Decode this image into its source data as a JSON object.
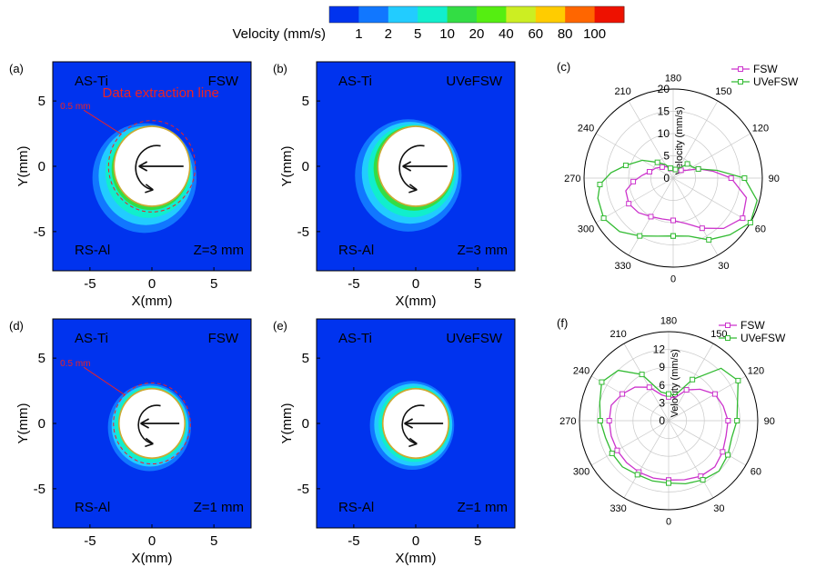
{
  "colorbar": {
    "label": "Velocity (mm/s)",
    "ticks": [
      "1",
      "2",
      "5",
      "10",
      "20",
      "40",
      "60",
      "80",
      "100"
    ],
    "colors": [
      "#0033ee",
      "#1177ff",
      "#22ccff",
      "#11eecc",
      "#33dd44",
      "#55ee11",
      "#ccee22",
      "#ffcc00",
      "#ff6600",
      "#ee1100"
    ]
  },
  "contour_panels": [
    {
      "label": "(a)",
      "top_right": "FSW",
      "top_left": "AS-Ti",
      "bottom_left": "RS-Al",
      "bottom_right": "Z=3 mm",
      "annotation": "Data extraction line",
      "dim_label": "0.5 mm",
      "xlabel": "X(mm)",
      "ylabel": "Y(mm)"
    },
    {
      "label": "(b)",
      "top_right": "UVeFSW",
      "top_left": "AS-Ti",
      "bottom_left": "RS-Al",
      "bottom_right": "Z=3 mm",
      "annotation": "",
      "dim_label": "",
      "xlabel": "X(mm)",
      "ylabel": "Y(mm)"
    },
    {
      "label": "(d)",
      "top_right": "FSW",
      "top_left": "AS-Ti",
      "bottom_left": "RS-Al",
      "bottom_right": "Z=1 mm",
      "annotation": "",
      "dim_label": "0.5 mm",
      "xlabel": "X(mm)",
      "ylabel": "Y(mm)"
    },
    {
      "label": "(e)",
      "top_right": "UVeFSW",
      "top_left": "AS-Ti",
      "bottom_left": "RS-Al",
      "bottom_right": "Z=1 mm",
      "annotation": "",
      "dim_label": "",
      "xlabel": "X(mm)",
      "ylabel": "Y(mm)"
    }
  ],
  "polar_panels": [
    {
      "label": "(c)",
      "rlabel": "Velocity (mm/s)",
      "r_ticks": [
        "0",
        "5",
        "10",
        "15",
        "20"
      ],
      "rmax": 20
    },
    {
      "label": "(f)",
      "rlabel": "Velocity (mm/s)",
      "r_ticks": [
        "0",
        "3",
        "6",
        "9",
        "12"
      ],
      "rmax": 15
    }
  ],
  "chart_data": [
    {
      "type": "heatmap",
      "panel": "(a)",
      "xlim": [
        -8,
        8
      ],
      "ylim": [
        -8,
        8
      ],
      "x_ticks": [
        -5,
        0,
        5
      ],
      "y_ticks": [
        -5,
        0,
        5
      ],
      "tool_radius_mm": 3,
      "series_name": "FSW",
      "layer_z": "Z=3 mm",
      "zones": [
        {
          "velocity": 2,
          "cx": -0.6,
          "cy": -0.9,
          "r": 4.2
        },
        {
          "velocity": 5,
          "cx": -0.5,
          "cy": -0.7,
          "r": 3.8
        },
        {
          "velocity": 10,
          "cx": -0.3,
          "cy": -0.5,
          "r": 3.45
        },
        {
          "velocity": 20,
          "cx": -0.1,
          "cy": -0.2,
          "r": 3.15
        },
        {
          "velocity": 40,
          "cx": 0,
          "cy": -0.05,
          "r": 3.02
        }
      ]
    },
    {
      "type": "heatmap",
      "panel": "(b)",
      "xlim": [
        -8,
        8
      ],
      "ylim": [
        -8,
        8
      ],
      "x_ticks": [
        -5,
        0,
        5
      ],
      "y_ticks": [
        -5,
        0,
        5
      ],
      "tool_radius_mm": 3,
      "series_name": "UVeFSW",
      "layer_z": "Z=3 mm",
      "zones": [
        {
          "velocity": 2,
          "cx": -0.6,
          "cy": -0.7,
          "r": 4.3
        },
        {
          "velocity": 5,
          "cx": -0.45,
          "cy": -0.5,
          "r": 3.9
        },
        {
          "velocity": 10,
          "cx": -0.3,
          "cy": -0.35,
          "r": 3.55
        },
        {
          "velocity": 20,
          "cx": -0.15,
          "cy": -0.15,
          "r": 3.25
        },
        {
          "velocity": 40,
          "cx": 0,
          "cy": 0,
          "r": 3.05
        }
      ]
    },
    {
      "type": "heatmap",
      "panel": "(d)",
      "xlim": [
        -8,
        8
      ],
      "ylim": [
        -8,
        8
      ],
      "x_ticks": [
        -5,
        0,
        5
      ],
      "y_ticks": [
        -5,
        0,
        5
      ],
      "tool_radius_mm": 2.6,
      "series_name": "FSW",
      "layer_z": "Z=1 mm",
      "zones": [
        {
          "velocity": 2,
          "cx": -0.2,
          "cy": -0.3,
          "r": 3.35
        },
        {
          "velocity": 5,
          "cx": -0.15,
          "cy": -0.2,
          "r": 3.1
        },
        {
          "velocity": 10,
          "cx": -0.1,
          "cy": -0.1,
          "r": 2.9
        },
        {
          "velocity": 20,
          "cx": 0,
          "cy": 0,
          "r": 2.7
        }
      ]
    },
    {
      "type": "heatmap",
      "panel": "(e)",
      "xlim": [
        -8,
        8
      ],
      "ylim": [
        -8,
        8
      ],
      "x_ticks": [
        -5,
        0,
        5
      ],
      "y_ticks": [
        -5,
        0,
        5
      ],
      "tool_radius_mm": 2.6,
      "series_name": "UVeFSW",
      "layer_z": "Z=1 mm",
      "zones": [
        {
          "velocity": 2,
          "cx": -0.3,
          "cy": -0.15,
          "r": 3.4
        },
        {
          "velocity": 5,
          "cx": -0.2,
          "cy": -0.1,
          "r": 3.15
        },
        {
          "velocity": 10,
          "cx": -0.1,
          "cy": -0.05,
          "r": 2.9
        },
        {
          "velocity": 20,
          "cx": 0,
          "cy": 0,
          "r": 2.72
        }
      ]
    },
    {
      "type": "polar",
      "panel": "(c)",
      "angles_deg": [
        0,
        30,
        60,
        90,
        120,
        150,
        180,
        210,
        240,
        270,
        300,
        330
      ],
      "r_ticks": [
        0,
        5,
        10,
        15,
        20
      ],
      "legend_position": "top-right",
      "series": [
        {
          "name": "FSW",
          "color": "#cc33cc",
          "points": [
            [
              0,
              9.5
            ],
            [
              15,
              10.5
            ],
            [
              30,
              13
            ],
            [
              45,
              16
            ],
            [
              60,
              18
            ],
            [
              75,
              17
            ],
            [
              90,
              13
            ],
            [
              100,
              9
            ],
            [
              110,
              6
            ],
            [
              120,
              3.5
            ],
            [
              135,
              2.5
            ],
            [
              150,
              2
            ],
            [
              165,
              2
            ],
            [
              180,
              2
            ],
            [
              195,
              2.2
            ],
            [
              210,
              3
            ],
            [
              225,
              3.5
            ],
            [
              240,
              4.5
            ],
            [
              255,
              5.5
            ],
            [
              265,
              7
            ],
            [
              275,
              9
            ],
            [
              285,
              11
            ],
            [
              300,
              11.5
            ],
            [
              315,
              11
            ],
            [
              330,
              10
            ],
            [
              345,
              9.5
            ],
            [
              360,
              9.5
            ]
          ]
        },
        {
          "name": "UVeFSW",
          "color": "#33bb33",
          "points": [
            [
              0,
              13
            ],
            [
              15,
              13.5
            ],
            [
              30,
              16
            ],
            [
              45,
              18
            ],
            [
              60,
              20
            ],
            [
              75,
              19.5
            ],
            [
              90,
              16
            ],
            [
              100,
              10
            ],
            [
              110,
              6
            ],
            [
              120,
              5
            ],
            [
              135,
              4.5
            ],
            [
              150,
              2.5
            ],
            [
              165,
              2
            ],
            [
              180,
              2
            ],
            [
              195,
              2.3
            ],
            [
              210,
              3.5
            ],
            [
              225,
              5
            ],
            [
              240,
              8
            ],
            [
              255,
              11
            ],
            [
              265,
              14
            ],
            [
              275,
              16.5
            ],
            [
              285,
              17.5
            ],
            [
              300,
              18
            ],
            [
              315,
              17
            ],
            [
              330,
              15
            ],
            [
              345,
              13.5
            ],
            [
              360,
              13
            ]
          ]
        }
      ]
    },
    {
      "type": "polar",
      "panel": "(f)",
      "angles_deg": [
        0,
        30,
        60,
        90,
        120,
        150,
        180,
        210,
        240,
        270,
        300,
        330
      ],
      "r_ticks": [
        0,
        3,
        6,
        9,
        12
      ],
      "legend_position": "top-right",
      "series": [
        {
          "name": "FSW",
          "color": "#cc33cc",
          "points": [
            [
              0,
              10
            ],
            [
              15,
              10.3
            ],
            [
              30,
              10.8
            ],
            [
              45,
              11
            ],
            [
              60,
              10.5
            ],
            [
              75,
              10
            ],
            [
              90,
              10
            ],
            [
              105,
              9.5
            ],
            [
              120,
              9
            ],
            [
              135,
              7.5
            ],
            [
              150,
              6
            ],
            [
              165,
              4
            ],
            [
              180,
              4
            ],
            [
              195,
              4.5
            ],
            [
              210,
              6.5
            ],
            [
              225,
              8
            ],
            [
              240,
              9
            ],
            [
              255,
              10
            ],
            [
              270,
              10
            ],
            [
              285,
              10
            ],
            [
              300,
              10
            ],
            [
              315,
              10
            ],
            [
              330,
              10
            ],
            [
              345,
              10
            ],
            [
              360,
              10
            ]
          ]
        },
        {
          "name": "UVeFSW",
          "color": "#33bb33",
          "points": [
            [
              0,
              10.5
            ],
            [
              15,
              11
            ],
            [
              30,
              11.5
            ],
            [
              45,
              12
            ],
            [
              60,
              11.5
            ],
            [
              75,
              11
            ],
            [
              90,
              11.5
            ],
            [
              105,
              12
            ],
            [
              120,
              13.5
            ],
            [
              135,
              12.5
            ],
            [
              150,
              8
            ],
            [
              165,
              4.5
            ],
            [
              180,
              4.5
            ],
            [
              195,
              5
            ],
            [
              210,
              9
            ],
            [
              225,
              12
            ],
            [
              240,
              13
            ],
            [
              255,
              12
            ],
            [
              270,
              11.5
            ],
            [
              285,
              11
            ],
            [
              300,
              11
            ],
            [
              315,
              11
            ],
            [
              330,
              10.5
            ],
            [
              345,
              10.5
            ],
            [
              360,
              10.5
            ]
          ]
        }
      ]
    }
  ]
}
